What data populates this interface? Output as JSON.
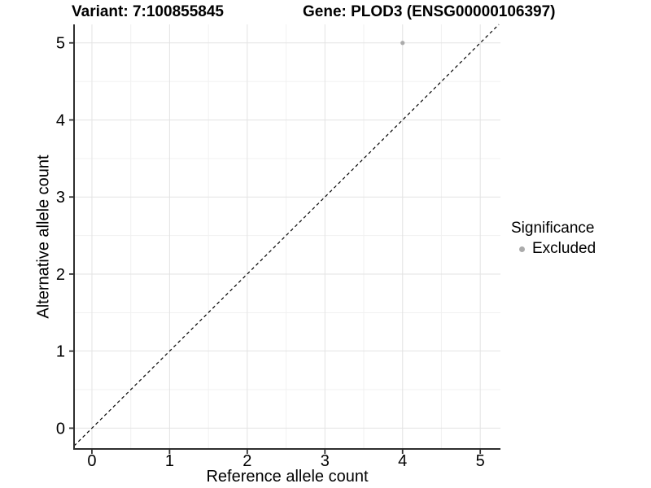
{
  "chart_data": {
    "type": "scatter",
    "title_left": "Variant: 7:100855845",
    "title_right": "Gene: PLOD3 (ENSG00000106397)",
    "xlabel": "Reference allele count",
    "ylabel": "Alternative allele count",
    "xlim": [
      -0.23,
      5.26
    ],
    "ylim": [
      -0.27,
      5.24
    ],
    "x_ticks": [
      0,
      1,
      2,
      3,
      4,
      5
    ],
    "y_ticks": [
      0,
      1,
      2,
      3,
      4,
      5
    ],
    "x_minor": [
      0.5,
      1.5,
      2.5,
      3.5,
      4.5
    ],
    "y_minor": [
      0.5,
      1.5,
      2.5,
      3.5,
      4.5
    ],
    "grid": "major+minor",
    "points": [
      {
        "x": 4,
        "y": 5,
        "series": "Excluded"
      }
    ],
    "reference_line": {
      "type": "identity",
      "slope": 1,
      "intercept": 0,
      "linestyle": "dashed",
      "color": "#000000"
    },
    "legend": {
      "title": "Significance",
      "position": "right",
      "items": [
        {
          "label": "Excluded",
          "color": "#ABABAB"
        }
      ]
    }
  },
  "colors": {
    "background": "#FFFFFF",
    "grid_major": "#E3E3E3",
    "grid_minor": "#F1F1F1",
    "axis_line": "#2E2E2E",
    "tick_mark": "#333333",
    "text": "#000000",
    "point": "#ABABAB"
  }
}
